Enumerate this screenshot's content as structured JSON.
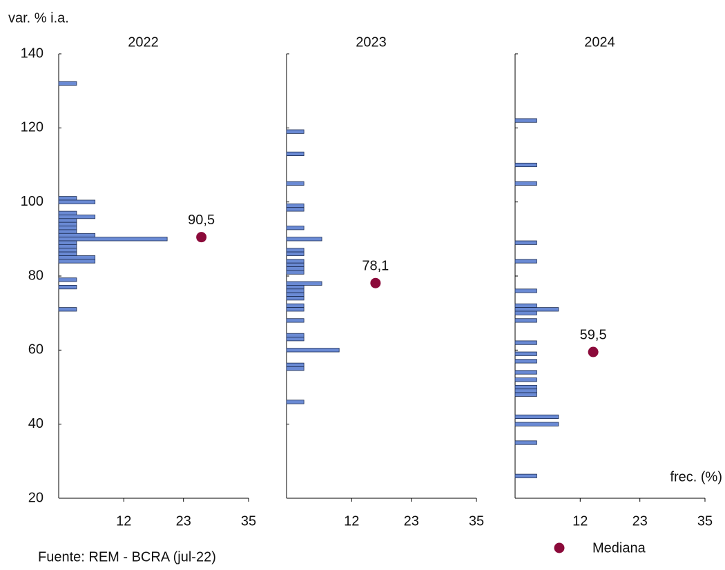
{
  "chart_data": [
    {
      "type": "histogram-h",
      "title": "2022",
      "ylabel": "var. % i.a.",
      "note": "Fuente: REM - BCRA (jul-22)",
      "y": [
        132,
        101,
        100,
        97,
        96,
        95,
        94,
        93,
        92,
        91,
        90,
        89,
        88,
        87,
        86,
        85,
        84,
        79,
        77,
        71
      ],
      "values": [
        3.3,
        3.3,
        6.7,
        3.3,
        6.7,
        3.3,
        3.3,
        3.3,
        3.3,
        6.7,
        20,
        3.3,
        3.3,
        3.3,
        3.3,
        6.7,
        6.7,
        3.3,
        3.3,
        3.3
      ],
      "color": "#6a8ad4",
      "median": {
        "name": "Mediana",
        "x": 26.3,
        "y": 90.5,
        "value_label": "90,5",
        "color": "#8b0a3a"
      },
      "xlim": [
        0,
        35
      ],
      "xticks": [
        12,
        23,
        35
      ],
      "ylim": [
        20,
        140
      ],
      "yticks": [
        20,
        40,
        60,
        80,
        100,
        120,
        140
      ]
    },
    {
      "type": "histogram-h",
      "title": "2023",
      "y": [
        119,
        113,
        105,
        99,
        98,
        93,
        90,
        87,
        86,
        84,
        83,
        82,
        81,
        78,
        77,
        76,
        75,
        74,
        72,
        71,
        68,
        64,
        63,
        60,
        56,
        55,
        46
      ],
      "values": [
        3.2,
        3.2,
        3.2,
        3.2,
        3.2,
        3.2,
        6.5,
        3.2,
        3.2,
        3.2,
        3.2,
        3.2,
        3.2,
        6.5,
        3.2,
        3.2,
        3.2,
        3.2,
        3.2,
        3.2,
        3.2,
        3.2,
        3.2,
        9.7,
        3.2,
        3.2,
        3.2
      ],
      "color": "#6a8ad4",
      "median": {
        "x": 16.4,
        "y": 78.1,
        "value_label": "78,1",
        "color": "#8b0a3a"
      },
      "xlim": [
        0,
        35
      ],
      "xticks": [
        12,
        23,
        35
      ]
    },
    {
      "type": "histogram-h",
      "title": "2024",
      "xlabel": "frec. (%)",
      "y": [
        122,
        110,
        105,
        89,
        84,
        76,
        72,
        71,
        70,
        68,
        62,
        59,
        57,
        54,
        52,
        50,
        49,
        48,
        42,
        40,
        35,
        26
      ],
      "values": [
        4,
        4,
        4,
        4,
        4,
        4,
        4,
        8,
        4,
        4,
        4,
        4,
        4,
        4,
        4,
        4,
        4,
        4,
        8,
        8,
        4,
        4
      ],
      "color": "#6a8ad4",
      "median": {
        "x": 14.4,
        "y": 59.5,
        "value_label": "59,5",
        "color": "#8b0a3a"
      },
      "xlim": [
        0,
        35
      ],
      "xticks": [
        12,
        23,
        35
      ]
    }
  ]
}
